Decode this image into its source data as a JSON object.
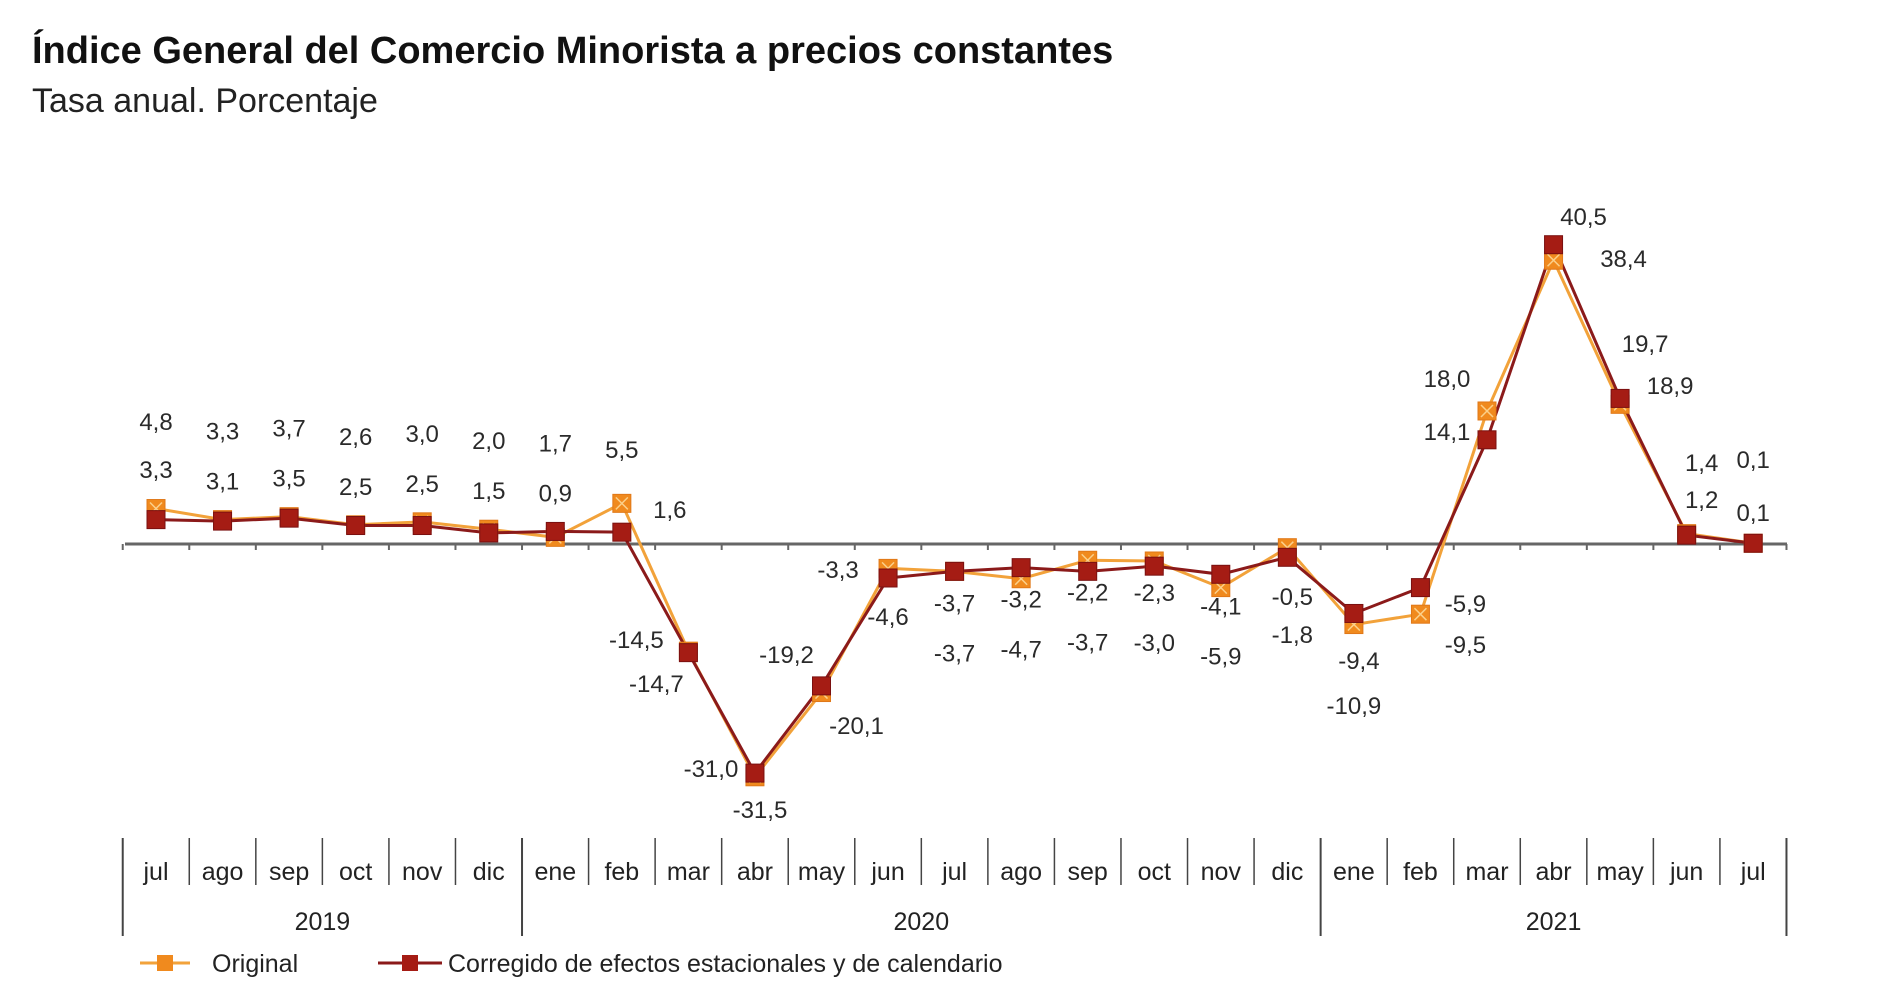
{
  "header": {
    "title": "Índice General del Comercio Minorista a precios constantes",
    "subtitle": "Tasa anual. Porcentaje"
  },
  "colors": {
    "original": "#f2a23a",
    "original_marker": "#f08a1e",
    "corrected": "#8b1a1a",
    "corrected_marker": "#a51c14",
    "axis": "#666666"
  },
  "chart_data": {
    "type": "line",
    "title": "Índice General del Comercio Minorista a precios constantes",
    "subtitle": "Tasa anual. Porcentaje",
    "xlabel": "",
    "ylabel": "",
    "grid": false,
    "legend_position": "bottom-left",
    "categories": [
      "jul",
      "ago",
      "sep",
      "oct",
      "nov",
      "dic",
      "ene",
      "feb",
      "mar",
      "abr",
      "may",
      "jun",
      "jul",
      "ago",
      "sep",
      "oct",
      "nov",
      "dic",
      "ene",
      "feb",
      "mar",
      "abr",
      "may",
      "jun",
      "jul"
    ],
    "years": [
      {
        "label": "2019",
        "start": 0,
        "end": 5
      },
      {
        "label": "2020",
        "start": 6,
        "end": 17
      },
      {
        "label": "2021",
        "start": 18,
        "end": 24
      }
    ],
    "ylim": [
      -35,
      42
    ],
    "series": [
      {
        "name": "Original",
        "values": [
          4.8,
          3.3,
          3.7,
          2.6,
          3.0,
          2.0,
          0.9,
          5.5,
          -14.5,
          -31.5,
          -20.1,
          -3.3,
          -3.7,
          -4.7,
          -2.2,
          -2.3,
          -5.9,
          -0.5,
          -10.9,
          -9.5,
          18.0,
          38.4,
          18.9,
          1.4,
          0.1
        ],
        "labels": [
          "4,8",
          "3,3",
          "3,7",
          "2,6",
          "3,0",
          "2,0",
          "0,9",
          "5,5",
          "-14,5",
          "-31,5",
          "-20,1",
          "-3,3",
          "-3,7",
          "-4,7",
          "-2,2",
          "-2,3",
          "-5,9",
          "-0,5",
          "-10,9",
          "-9,5",
          "18,0",
          "38,4",
          "18,9",
          "1,4",
          "0,1"
        ]
      },
      {
        "name": "Corregido de efectos estacionales y de calendario",
        "values": [
          3.3,
          3.1,
          3.5,
          2.5,
          2.5,
          1.5,
          1.7,
          1.6,
          -14.7,
          -31.0,
          -19.2,
          -4.6,
          -3.7,
          -3.2,
          -3.7,
          -3.0,
          -4.1,
          -1.8,
          -9.4,
          -5.9,
          14.1,
          40.5,
          19.7,
          1.2,
          0.1
        ],
        "labels": [
          "3,3",
          "3,1",
          "3,5",
          "2,5",
          "2,5",
          "1,5",
          "1,7",
          "1,6",
          "-14,7",
          "-31,0",
          "-19,2",
          "-4,6",
          "-3,7",
          "-3,2",
          "-3,7",
          "-3,0",
          "-4,1",
          "-1,8",
          "-9,4",
          "-5,9",
          "14,1",
          "40,5",
          "19,7",
          "1,2",
          "0,1"
        ]
      }
    ]
  },
  "legend": {
    "items": [
      {
        "label": "Original",
        "icon": "orange-square-line-marker"
      },
      {
        "label": "Corregido de efectos estacionales y de calendario",
        "icon": "darkred-square-line-marker"
      }
    ]
  }
}
